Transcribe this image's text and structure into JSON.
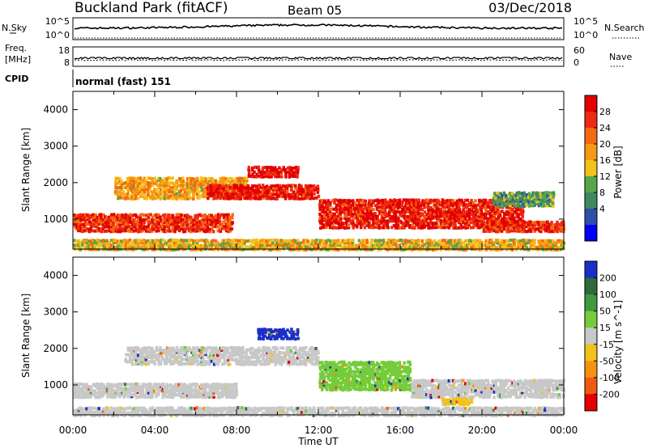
{
  "header": {
    "site": "Buckland Park (fitACF)",
    "beam": "Beam 05",
    "date": "03/Dec/2018"
  },
  "top_panels": {
    "nsky_label": "N.Sky",
    "nsky_ticks": [
      "10^5",
      "10^0"
    ],
    "nsearch_label": "N.Search",
    "nsearch_ticks": [
      "10^5",
      "10^0"
    ],
    "freq_label_1": "Freq.",
    "freq_label_2": "[MHz]",
    "freq_ticks": [
      "18",
      "8"
    ],
    "nave_label": "Nave",
    "nave_ticks": [
      "60",
      "0"
    ],
    "cpid_label": "CPID",
    "cpid_text": "normal (fast) 151"
  },
  "chart_data": [
    {
      "type": "heatmap",
      "quantity": "Power",
      "ylabel": "Slant Range [km]",
      "xlabel": "Time UT",
      "yticks": [
        "4000",
        "3000",
        "2000",
        "1000"
      ],
      "ylim": [
        180,
        4500
      ],
      "colorbar_label": "Power [dB]",
      "colorbar_ticks": [
        "28",
        "24",
        "20",
        "16",
        "12",
        "8",
        "4"
      ],
      "colors": [
        "#0000ee",
        "#2d4fa8",
        "#3e8a5f",
        "#57a74a",
        "#f2c21c",
        "#f59a12",
        "#f46a10",
        "#ee2a14",
        "#e20000"
      ],
      "regions": [
        {
          "t0": 0.0,
          "t1": 7.8,
          "r0": 700,
          "r1": 1200,
          "level": 0.85
        },
        {
          "t0": 2.0,
          "t1": 8.5,
          "r0": 1600,
          "r1": 2200,
          "level": 0.6
        },
        {
          "t0": 6.5,
          "t1": 12.0,
          "r0": 1600,
          "r1": 2000,
          "level": 0.9
        },
        {
          "t0": 8.5,
          "t1": 11.0,
          "r0": 2200,
          "r1": 2500,
          "level": 0.95
        },
        {
          "t0": 12.0,
          "t1": 22.0,
          "r0": 800,
          "r1": 1600,
          "level": 0.9
        },
        {
          "t0": 20.0,
          "t1": 24.0,
          "r0": 700,
          "r1": 1000,
          "level": 0.85
        },
        {
          "t0": 0.0,
          "t1": 24.0,
          "r0": 200,
          "r1": 500,
          "level": 0.55
        },
        {
          "t0": 20.5,
          "t1": 23.5,
          "r0": 1400,
          "r1": 1800,
          "level": 0.35
        }
      ]
    },
    {
      "type": "heatmap",
      "quantity": "Velocity",
      "ylabel": "Slant Range [km]",
      "xlabel": "Time UT",
      "xticks": [
        "00:00",
        "04:00",
        "08:00",
        "12:00",
        "16:00",
        "20:00",
        "00:00"
      ],
      "yticks": [
        "4000",
        "3000",
        "2000",
        "1000"
      ],
      "ylim": [
        180,
        4500
      ],
      "colorbar_label": "Velocity [m s^-1]",
      "colorbar_ticks": [
        "200",
        "100",
        "50",
        "15",
        "-15",
        "-50",
        "-100",
        "-200"
      ],
      "colors": [
        "#1a2fc8",
        "#2f6a3a",
        "#3f9a3f",
        "#74cc3a",
        "#c8c8c8",
        "#f2c21c",
        "#f5920e",
        "#f05a10",
        "#e20000"
      ],
      "regions": [
        {
          "t0": 0.0,
          "t1": 8.0,
          "r0": 700,
          "r1": 1100,
          "value": 0
        },
        {
          "t0": 2.5,
          "t1": 12.0,
          "r0": 1600,
          "r1": 2100,
          "value": 0
        },
        {
          "t0": 9.0,
          "t1": 11.0,
          "r0": 2300,
          "r1": 2600,
          "value": 200
        },
        {
          "t0": 12.0,
          "t1": 16.5,
          "r0": 900,
          "r1": 1700,
          "value": 50
        },
        {
          "t0": 16.5,
          "t1": 24.0,
          "r0": 700,
          "r1": 1200,
          "value": 0
        },
        {
          "t0": 18.0,
          "t1": 19.5,
          "r0": 500,
          "r1": 700,
          "value": -50
        },
        {
          "t0": 0.0,
          "t1": 24.0,
          "r0": 200,
          "r1": 450,
          "value": 15
        }
      ]
    }
  ]
}
